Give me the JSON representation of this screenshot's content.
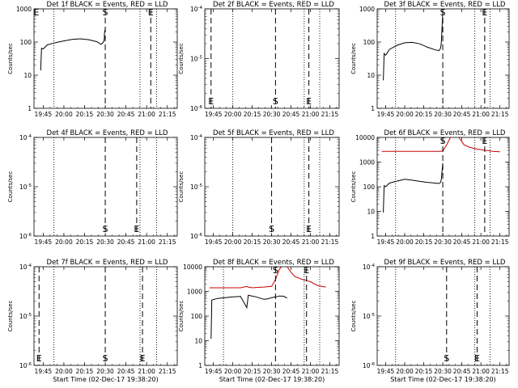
{
  "chart_data": [
    {
      "type": "line",
      "title": "Det 1f BLACK = Events, RED = LLD",
      "xlabel": "",
      "ylabel": "Counts/sec",
      "scale": "log",
      "ylim": [
        1,
        1000
      ],
      "yticks": [
        {
          "v": 1,
          "label": "1"
        },
        {
          "v": 10,
          "label": "10"
        },
        {
          "v": 100,
          "label": "100"
        },
        {
          "v": 1000,
          "label": "1000"
        }
      ],
      "xticks": [
        "19:45",
        "20:00",
        "20:15",
        "20:30",
        "20:45",
        "21:00",
        "21:15"
      ],
      "markers": [
        {
          "label": "E",
          "x": 18.2
        },
        {
          "label": "S",
          "x": 20.5
        },
        {
          "label": "E",
          "x": 21.05
        }
      ],
      "dotted": [
        {
          "x": 19.88
        },
        {
          "x": 20.92
        },
        {
          "x": 21.12
        }
      ],
      "series": [
        {
          "color": "#000000",
          "x": [
            19.72,
            19.73,
            19.75,
            19.8,
            19.9,
            20.0,
            20.1,
            20.2,
            20.3,
            20.4,
            20.45,
            20.47,
            20.48,
            20.49,
            20.49,
            20.5
          ],
          "y": [
            14,
            65,
            62,
            82,
            96,
            108,
            120,
            125,
            118,
            102,
            85,
            95,
            100,
            130,
            180,
            250
          ]
        }
      ]
    },
    {
      "type": "line",
      "title": "Det 2f BLACK = Events, RED = LLD",
      "xlabel": "",
      "ylabel": "Counts/sec",
      "scale": "log",
      "ylim": [
        1e-06,
        0.0001
      ],
      "yticks": [
        {
          "v": 1e-06,
          "label": "10^-6"
        },
        {
          "v": 1e-05,
          "label": "10^-5"
        },
        {
          "v": 0.0001,
          "label": "10^-4"
        }
      ],
      "xticks": [
        "19:45",
        "20:00",
        "20:15",
        "20:30",
        "20:45",
        "21:00",
        "21:15"
      ],
      "markers": [
        {
          "label": "E",
          "x": 19.72
        },
        {
          "label": "S",
          "x": 20.55
        },
        {
          "label": "E",
          "x": 20.98
        }
      ],
      "dotted": [
        {
          "x": 20.0
        },
        {
          "x": 20.92
        },
        {
          "x": 21.12
        }
      ],
      "series": []
    },
    {
      "type": "line",
      "title": "Det 3f BLACK = Events, RED = LLD",
      "xlabel": "",
      "ylabel": "Counts/sec",
      "scale": "log",
      "ylim": [
        1,
        1000
      ],
      "yticks": [
        {
          "v": 1,
          "label": "1"
        },
        {
          "v": 10,
          "label": "10"
        },
        {
          "v": 100,
          "label": "100"
        },
        {
          "v": 1000,
          "label": "1000"
        }
      ],
      "xticks": [
        "19:45",
        "20:00",
        "20:15",
        "20:30",
        "20:45",
        "21:00",
        "21:15"
      ],
      "markers": [
        {
          "label": "S",
          "x": 20.5
        },
        {
          "label": "E",
          "x": 21.05
        }
      ],
      "dotted": [
        {
          "x": 19.88
        },
        {
          "x": 20.92
        },
        {
          "x": 21.12
        }
      ],
      "series": [
        {
          "color": "#000000",
          "x": [
            19.72,
            19.73,
            19.75,
            19.8,
            19.9,
            20.0,
            20.1,
            20.2,
            20.3,
            20.4,
            20.45,
            20.47,
            20.48,
            20.49,
            20.5
          ],
          "y": [
            7,
            45,
            40,
            60,
            80,
            95,
            98,
            88,
            70,
            58,
            55,
            65,
            90,
            250,
            800
          ]
        }
      ]
    },
    {
      "type": "line",
      "title": "Det 4f BLACK = Events, RED = LLD",
      "xlabel": "",
      "ylabel": "Counts/sec",
      "scale": "log",
      "ylim": [
        1e-06,
        0.0001
      ],
      "yticks": [
        {
          "v": 1e-06,
          "label": "10^-6"
        },
        {
          "v": 1e-05,
          "label": "10^-5"
        },
        {
          "v": 0.0001,
          "label": "10^-4"
        }
      ],
      "xticks": [
        "19:45",
        "20:00",
        "20:15",
        "20:30",
        "20:45",
        "21:00",
        "21:15"
      ],
      "markers": [
        {
          "label": "S",
          "x": 20.5
        },
        {
          "label": "E",
          "x": 20.88
        }
      ],
      "dotted": [
        {
          "x": 19.88
        },
        {
          "x": 20.92
        },
        {
          "x": 21.12
        }
      ],
      "series": []
    },
    {
      "type": "line",
      "title": "Det 5f BLACK = Events, RED = LLD",
      "xlabel": "",
      "ylabel": "Counts/sec",
      "scale": "log",
      "ylim": [
        1e-06,
        0.0001
      ],
      "yticks": [
        {
          "v": 1e-06,
          "label": "10^-6"
        },
        {
          "v": 1e-05,
          "label": "10^-5"
        },
        {
          "v": 0.0001,
          "label": "10^-4"
        }
      ],
      "xticks": [
        "19:45",
        "20:00",
        "20:15",
        "20:30",
        "20:45",
        "21:00",
        "21:15"
      ],
      "markers": [
        {
          "label": "S",
          "x": 20.5
        },
        {
          "label": "E",
          "x": 20.98
        }
      ],
      "dotted": [
        {
          "x": 20.0
        },
        {
          "x": 20.92
        },
        {
          "x": 21.12
        }
      ],
      "series": []
    },
    {
      "type": "line",
      "title": "Det 6f BLACK = Events, RED = LLD",
      "xlabel": "",
      "ylabel": "Counts/sec",
      "scale": "log",
      "ylim": [
        1,
        10000
      ],
      "yticks": [
        {
          "v": 1,
          "label": "1"
        },
        {
          "v": 10,
          "label": "10"
        },
        {
          "v": 100,
          "label": "100"
        },
        {
          "v": 1000,
          "label": "1000"
        },
        {
          "v": 10000,
          "label": "10000"
        }
      ],
      "xticks": [
        "19:45",
        "20:00",
        "20:15",
        "20:30",
        "20:45",
        "21:00",
        "21:15"
      ],
      "markers": [
        {
          "label": "S",
          "x": 20.5
        },
        {
          "label": "E",
          "x": 21.05
        }
      ],
      "dotted": [
        {
          "x": 19.88
        },
        {
          "x": 20.92
        },
        {
          "x": 21.12
        }
      ],
      "series": [
        {
          "color": "#cc0000",
          "x": [
            19.7,
            19.9,
            20.1,
            20.3,
            20.45,
            20.5,
            20.55,
            20.6,
            20.62,
            20.7,
            20.72,
            20.78,
            20.85,
            20.92,
            21.0,
            21.05,
            21.1,
            21.15,
            21.25
          ],
          "y": [
            2700,
            2700,
            2700,
            2700,
            2700,
            2800,
            5000,
            10000,
            12000,
            12000,
            9000,
            5000,
            4000,
            3500,
            3200,
            3000,
            2900,
            2700,
            2600
          ]
        },
        {
          "color": "#000000",
          "x": [
            19.72,
            19.73,
            19.75,
            19.8,
            19.9,
            20.0,
            20.1,
            20.2,
            20.3,
            20.4,
            20.45,
            20.47,
            20.48,
            20.49,
            20.5
          ],
          "y": [
            9,
            110,
            100,
            140,
            170,
            200,
            185,
            165,
            150,
            140,
            135,
            150,
            190,
            400,
            900
          ]
        }
      ]
    },
    {
      "type": "line",
      "title": "Det 7f BLACK = Events, RED = LLD",
      "xlabel": "Start Time (02-Dec-17 19:38:20)",
      "ylabel": "Counts/sec",
      "scale": "log",
      "ylim": [
        1e-06,
        0.0001
      ],
      "yticks": [
        {
          "v": 1e-06,
          "label": "10^-6"
        },
        {
          "v": 1e-05,
          "label": "10^-5"
        },
        {
          "v": 0.0001,
          "label": "10^-4"
        }
      ],
      "xticks": [
        "19:45",
        "20:00",
        "20:15",
        "20:30",
        "20:45",
        "21:00",
        "21:15"
      ],
      "markers": [
        {
          "label": "E",
          "x": 19.7
        },
        {
          "label": "S",
          "x": 20.5
        },
        {
          "label": "E",
          "x": 20.95
        }
      ],
      "dotted": [
        {
          "x": 19.88
        },
        {
          "x": 20.92
        },
        {
          "x": 21.12
        }
      ],
      "series": []
    },
    {
      "type": "line",
      "title": "Det 8f BLACK = Events, RED = LLD",
      "xlabel": "Start Time (02-Dec-17 19:38:20)",
      "ylabel": "Counts/sec",
      "scale": "log",
      "ylim": [
        1,
        10000
      ],
      "yticks": [
        {
          "v": 1,
          "label": "1"
        },
        {
          "v": 10,
          "label": "10"
        },
        {
          "v": 100,
          "label": "100"
        },
        {
          "v": 1000,
          "label": "1000"
        },
        {
          "v": 10000,
          "label": "10000"
        }
      ],
      "xticks": [
        "19:45",
        "20:00",
        "20:15",
        "20:30",
        "20:45",
        "21:00",
        "21:15"
      ],
      "markers": [
        {
          "label": "S",
          "x": 20.55
        },
        {
          "label": "E",
          "x": 20.95
        }
      ],
      "dotted": [
        {
          "x": 19.88
        },
        {
          "x": 20.92
        },
        {
          "x": 21.12
        }
      ],
      "series": [
        {
          "color": "#cc0000",
          "x": [
            19.7,
            19.9,
            20.1,
            20.18,
            20.2,
            20.25,
            20.3,
            20.4,
            20.5,
            20.55,
            20.6,
            20.65,
            20.7,
            20.75,
            20.8,
            20.9,
            21.0,
            21.05,
            21.1,
            21.2
          ],
          "y": [
            1400,
            1400,
            1400,
            1600,
            1500,
            1400,
            1450,
            1500,
            1600,
            3000,
            8000,
            12000,
            10000,
            6000,
            4000,
            3000,
            2500,
            2000,
            1700,
            1500
          ]
        },
        {
          "color": "#000000",
          "x": [
            19.72,
            19.73,
            19.8,
            19.9,
            20.0,
            20.1,
            20.18,
            20.2,
            20.3,
            20.38,
            20.4,
            20.45,
            20.5,
            20.55,
            20.6,
            20.65,
            20.7
          ],
          "y": [
            12,
            450,
            520,
            560,
            600,
            620,
            220,
            700,
            600,
            500,
            480,
            500,
            560,
            600,
            650,
            640,
            540
          ]
        }
      ]
    },
    {
      "type": "line",
      "title": "Det 9f BLACK = Events, RED = LLD",
      "xlabel": "Start Time (02-Dec-17 19:38:20)",
      "ylabel": "Counts/sec",
      "scale": "log",
      "ylim": [
        1e-06,
        0.0001
      ],
      "yticks": [
        {
          "v": 1e-06,
          "label": "10^-6"
        },
        {
          "v": 1e-05,
          "label": "10^-5"
        },
        {
          "v": 0.0001,
          "label": "10^-4"
        }
      ],
      "xticks": [
        "19:45",
        "20:00",
        "20:15",
        "20:30",
        "20:45",
        "21:00",
        "21:15"
      ],
      "markers": [
        {
          "label": "S",
          "x": 20.55
        },
        {
          "label": "E",
          "x": 20.95
        }
      ],
      "dotted": [
        {
          "x": 19.88
        },
        {
          "x": 20.92
        },
        {
          "x": 21.12
        }
      ],
      "series": []
    }
  ]
}
